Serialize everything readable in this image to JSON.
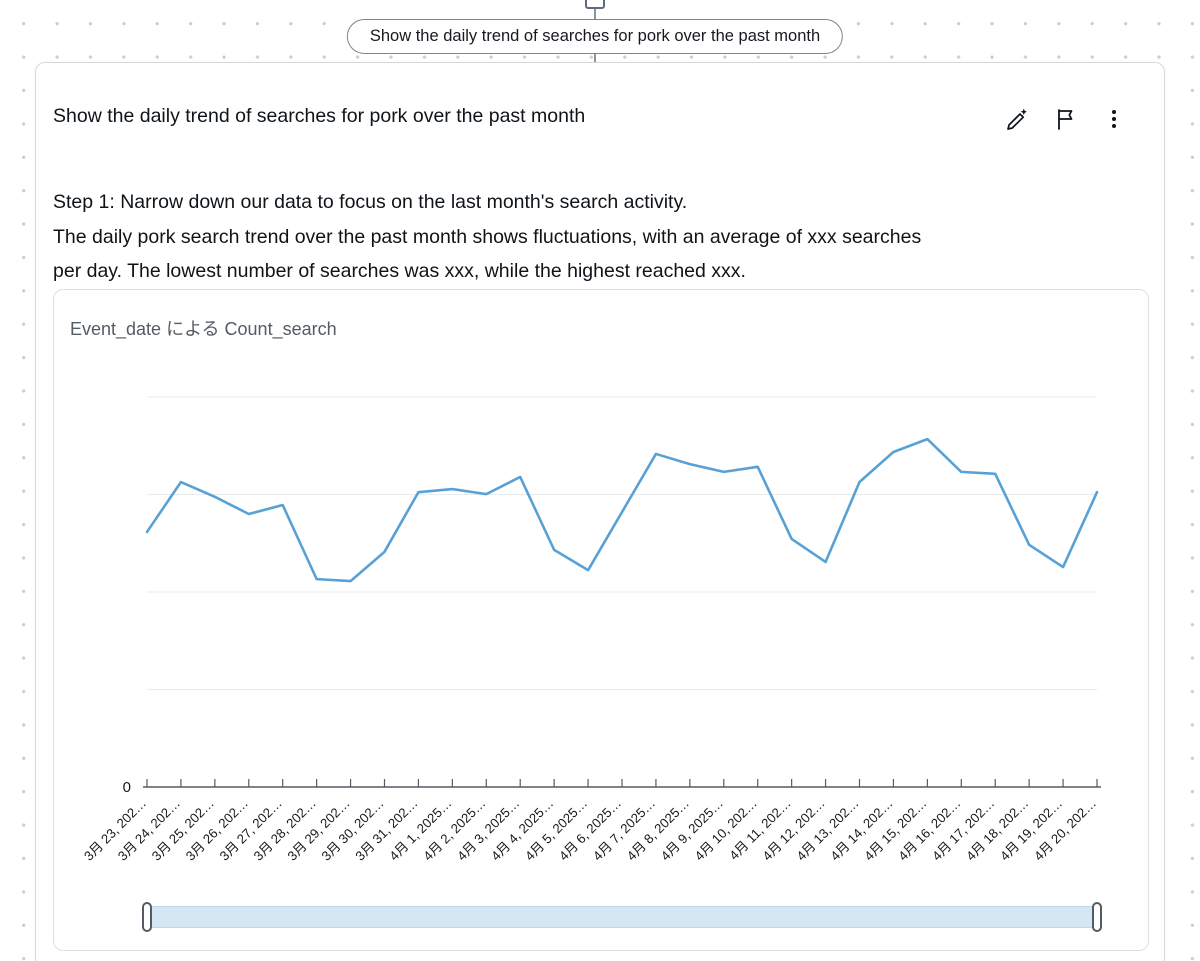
{
  "pill": {
    "text": "Show the daily trend of searches for pork over the past month"
  },
  "card": {
    "title": "Show the daily trend of searches for pork over the past month",
    "body_lines": [
      "Step 1: Narrow down our data to focus on the last month's search activity.",
      "The daily pork search trend over the past month shows fluctuations, with an average of xxx searches",
      "per day. The lowest number of searches was xxx, while the highest reached xxx."
    ],
    "actions": [
      {
        "name": "edit",
        "icon": "pencil-sparkle-icon"
      },
      {
        "name": "flag",
        "icon": "flag-icon"
      },
      {
        "name": "more-options",
        "icon": "kebab-menu-icon"
      }
    ]
  },
  "chart": {
    "title": "Event_date による Count_search",
    "y_axis_zero_label": "0"
  },
  "chart_data": {
    "type": "line",
    "title": "Event_date による Count_search",
    "xlabel": "Event_date",
    "ylabel": "Count_search",
    "x": [
      "3月 23, 202…",
      "3月 24, 202…",
      "3月 25, 202…",
      "3月 26, 202…",
      "3月 27, 202…",
      "3月 28, 202…",
      "3月 29, 202…",
      "3月 30, 202…",
      "3月 31, 202…",
      "4月 1, 2025…",
      "4月 2, 2025…",
      "4月 3, 2025…",
      "4月 4, 2025…",
      "4月 5, 2025…",
      "4月 6, 2025…",
      "4月 7, 2025…",
      "4月 8, 2025…",
      "4月 9, 2025…",
      "4月 10, 202…",
      "4月 11, 202…",
      "4月 12, 202…",
      "4月 13, 202…",
      "4月 14, 202…",
      "4月 15, 202…",
      "4月 16, 202…",
      "4月 17, 202…",
      "4月 18, 202…",
      "4月 19, 202…",
      "4月 20, 202…"
    ],
    "values": [
      654,
      782,
      744,
      700,
      723,
      533,
      528,
      603,
      756,
      764,
      751,
      795,
      608,
      556,
      705,
      854,
      828,
      808,
      821,
      636,
      577,
      782,
      859,
      892,
      808,
      803,
      621,
      564,
      756
    ],
    "ylim": [
      0,
      1000
    ],
    "y_tick_labels_visible": [
      "0"
    ],
    "grid": true,
    "legend_position": "none",
    "line_color": "#59a1d4"
  },
  "colors": {
    "line": "#59a1d4",
    "gridline": "#e9ecee",
    "axis": "#545b64",
    "slider_track": "#d4e8f4",
    "card_border": "#d5d9d9"
  }
}
